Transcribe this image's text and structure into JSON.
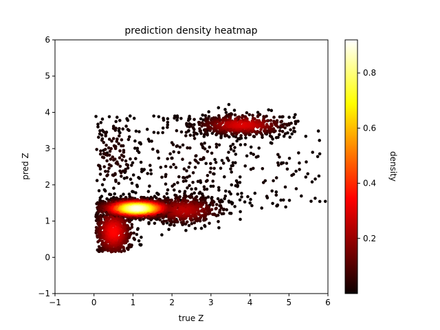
{
  "chart_data": {
    "type": "scatter",
    "title": "prediction density heatmap",
    "xlabel": "true Z",
    "ylabel": "pred Z",
    "xlim": [
      -1,
      6
    ],
    "ylim": [
      -1,
      6
    ],
    "xticks": [
      -1,
      0,
      1,
      2,
      3,
      4,
      5,
      6
    ],
    "yticks": [
      -1,
      0,
      1,
      2,
      3,
      4,
      5,
      6
    ],
    "grid": false,
    "legend": "none",
    "colorbar": {
      "label": "density",
      "colormap": "hot",
      "range": [
        0.0,
        0.92
      ],
      "ticks": [
        0.2,
        0.4,
        0.6,
        0.8
      ]
    },
    "clusters": [
      {
        "name_hint": "low-z core",
        "center": [
          1.1,
          1.35
        ],
        "spread": [
          0.45,
          0.12
        ],
        "density": 0.9
      },
      {
        "name_hint": "low-z lower tail",
        "center": [
          0.5,
          0.7
        ],
        "spread": [
          0.25,
          0.35
        ],
        "density": 0.35
      },
      {
        "name_hint": "mid-z band",
        "center": [
          2.3,
          1.3
        ],
        "spread": [
          0.5,
          0.2
        ],
        "density": 0.25
      },
      {
        "name_hint": "high-z plateau",
        "center": [
          3.8,
          3.65
        ],
        "spread": [
          0.6,
          0.15
        ],
        "density": 0.3
      },
      {
        "name_hint": "low-z outliers",
        "center": [
          0.5,
          2.8
        ],
        "spread": [
          0.35,
          0.6
        ],
        "density": 0.05
      },
      {
        "name_hint": "mid-z outliers",
        "center": [
          2.5,
          2.7
        ],
        "spread": [
          0.9,
          0.9
        ],
        "density": 0.03
      },
      {
        "name_hint": "high-z outliers",
        "center": [
          4.6,
          2.4
        ],
        "spread": [
          0.9,
          0.8
        ],
        "density": 0.02
      }
    ]
  }
}
